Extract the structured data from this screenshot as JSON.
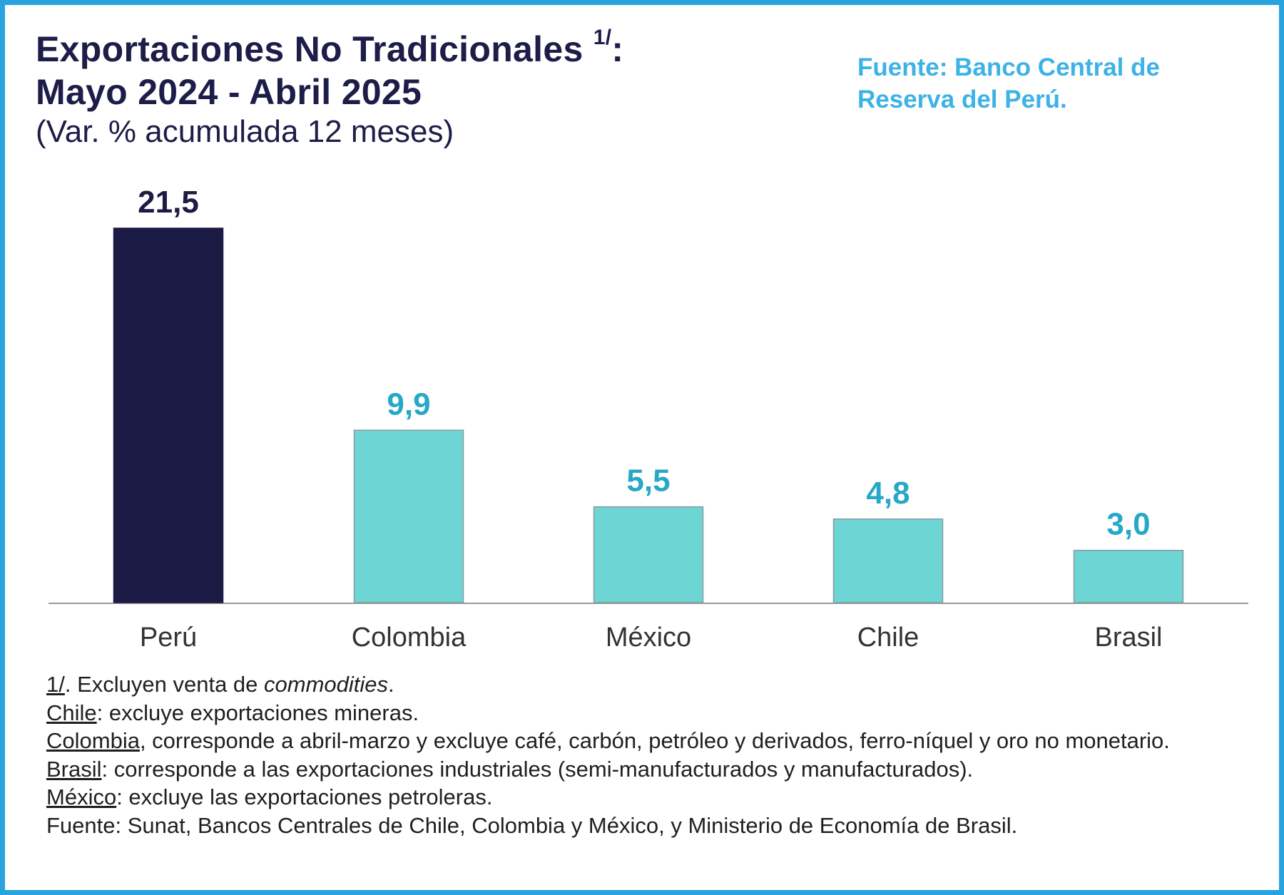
{
  "header": {
    "title_line1": "Exportaciones No Tradicionales",
    "title_sup": "1/",
    "title_sup_colon": ":",
    "title_line2": "Mayo 2024 - Abril 2025",
    "subtitle": "(Var. % acumulada 12 meses)",
    "source": "Fuente: Banco Central de Reserva del Perú."
  },
  "chart_data": {
    "type": "bar",
    "title": "Exportaciones No Tradicionales 1/: Mayo 2024 - Abril 2025",
    "subtitle": "(Var. % acumulada 12 meses)",
    "categories": [
      "Perú",
      "Colombia",
      "México",
      "Chile",
      "Brasil"
    ],
    "values": [
      21.5,
      9.9,
      5.5,
      4.8,
      3.0
    ],
    "value_labels": [
      "21,5",
      "9,9",
      "5,5",
      "4,8",
      "3,0"
    ],
    "ylim": [
      0,
      22
    ],
    "grid": false,
    "legend": "none",
    "colors": {
      "highlight": "#1b1b45",
      "highlight_label": "#1b1b45",
      "bar": "#6dd5d4",
      "bar_border": "#8a9aa0",
      "label": "#27a8c7",
      "axis": "#9a9a9a",
      "category_text": "#333333"
    }
  },
  "notes": {
    "n1_prefix": "1/",
    "n1_text": ". Excluyen venta de ",
    "n1_italic": "commodities",
    "n1_end": ".",
    "n2_label": "Chile",
    "n2_text": ": excluye exportaciones mineras.",
    "n3_label": "Colombia",
    "n3_text": ", corresponde a abril-marzo y excluye café, carbón, petróleo y derivados, ferro-níquel y oro no monetario.",
    "n4_label": "Brasil",
    "n4_text": ": corresponde a las exportaciones industriales (semi-manufacturados y manufacturados).",
    "n5_label": "México",
    "n5_text": ": excluye las exportaciones petroleras.",
    "n6_text": "Fuente: Sunat, Bancos Centrales de Chile, Colombia y México, y Ministerio de Economía de Brasil."
  }
}
